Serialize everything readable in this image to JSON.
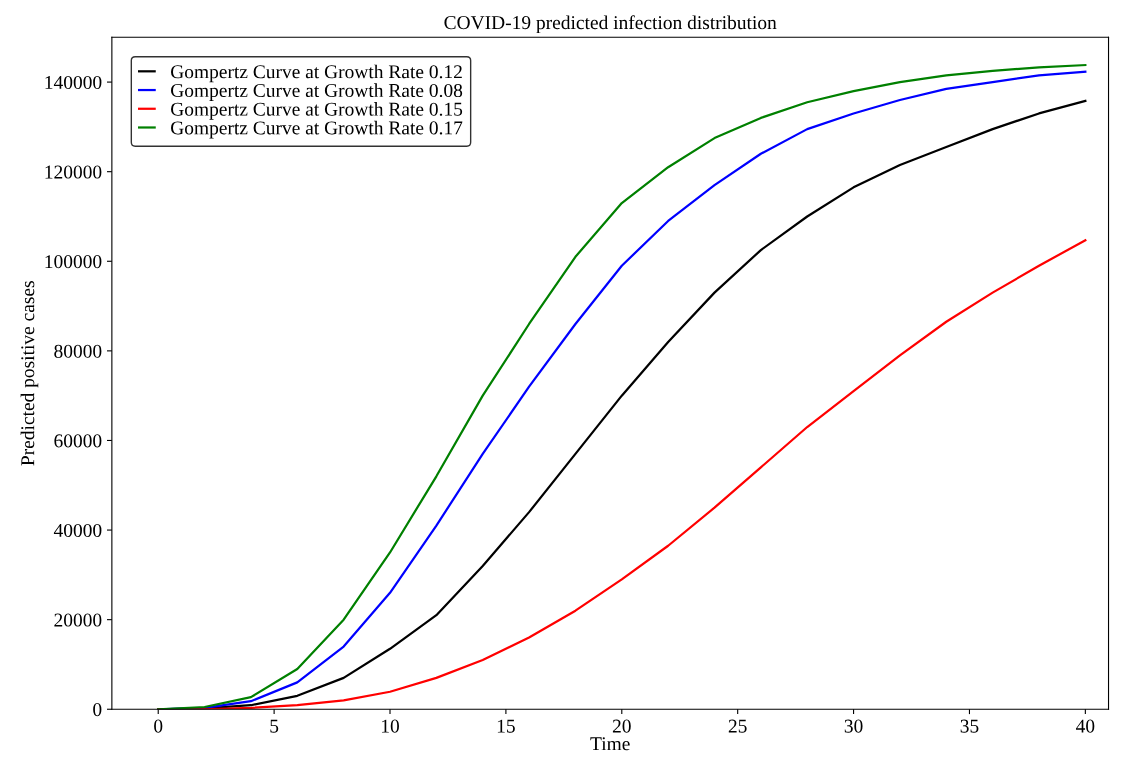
{
  "chart_data": {
    "type": "line",
    "title": "COVID-19 predicted infection distribution",
    "xlabel": "Time",
    "ylabel": "Predicted positive cases",
    "x": [
      0,
      2,
      4,
      6,
      8,
      10,
      12,
      14,
      16,
      18,
      20,
      22,
      24,
      26,
      28,
      30,
      32,
      34,
      36,
      38,
      40
    ],
    "series": [
      {
        "name": "Gompertz Curve at Growth Rate 0.12",
        "color": "#000000",
        "values": [
          0,
          200,
          900,
          3000,
          7000,
          13500,
          21000,
          32000,
          44000,
          57000,
          70000,
          82000,
          93000,
          102500,
          110000,
          116500,
          121500,
          125500,
          129500,
          133000,
          135800
        ]
      },
      {
        "name": "Gompertz Curve at Growth Rate 0.08",
        "color": "#0000ff",
        "values": [
          0,
          300,
          1800,
          6000,
          14000,
          26000,
          41000,
          57000,
          72000,
          86000,
          99000,
          109000,
          117000,
          124000,
          129500,
          133000,
          136000,
          138500,
          140000,
          141500,
          142300
        ]
      },
      {
        "name": "Gompertz Curve at Growth Rate 0.15",
        "color": "#ff0000",
        "values": [
          0,
          0,
          300,
          900,
          2000,
          3900,
          7000,
          11000,
          16000,
          22000,
          29000,
          36500,
          45000,
          54000,
          63000,
          71000,
          79000,
          86500,
          93000,
          99000,
          104700
        ]
      },
      {
        "name": "Gompertz Curve at Growth Rate 0.17",
        "color": "#008000",
        "values": [
          0,
          500,
          2700,
          9000,
          20000,
          35000,
          52000,
          70000,
          86000,
          101000,
          113000,
          121000,
          127500,
          132000,
          135500,
          138000,
          140000,
          141500,
          142500,
          143300,
          143800
        ]
      }
    ],
    "xlim": [
      -2,
      41
    ],
    "ylim": [
      0,
      150000
    ],
    "xticks": [
      0,
      5,
      10,
      15,
      20,
      25,
      30,
      35,
      40
    ],
    "yticks": [
      0,
      20000,
      40000,
      60000,
      80000,
      100000,
      120000,
      140000
    ],
    "legend": "top left",
    "grid": false,
    "line_style": "solid",
    "marker": "none"
  }
}
